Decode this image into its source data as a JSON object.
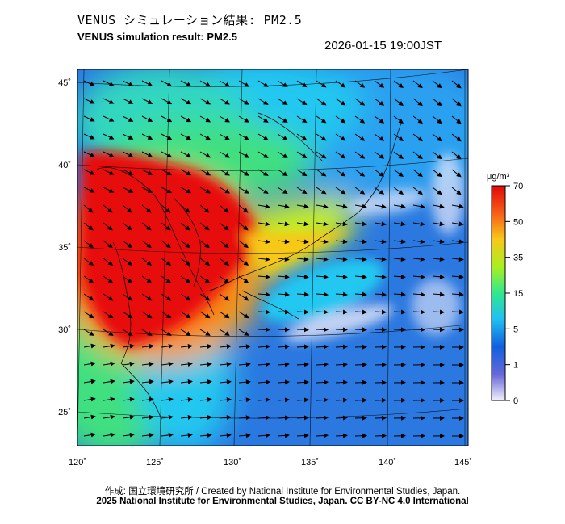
{
  "title_jp": "VENUS シミュレーション結果: PM2.5",
  "title_en": "VENUS simulation result: PM2.5",
  "timestamp": "2026-01-15 19:00JST",
  "colorbar": {
    "unit": "μg/m³",
    "ticks": [
      "70",
      "50",
      "35",
      "15",
      "5",
      "1",
      "0"
    ],
    "colors": [
      "#e8e8f8",
      "#5858d8",
      "#1870e8",
      "#20c8f0",
      "#30e890",
      "#c8f020",
      "#f8c818",
      "#f86018",
      "#e81010"
    ]
  },
  "axes": {
    "lon_labels": [
      "120˚",
      "125˚",
      "130˚",
      "135˚",
      "140˚",
      "145˚"
    ],
    "lat_labels": [
      "45˚",
      "40˚",
      "35˚",
      "30˚",
      "25˚"
    ]
  },
  "credit": {
    "line1": "作成: 国立環境研究所 / Created by National Institute for Environmental Studies, Japan.",
    "line2": "2025 National Institute for Environmental Studies, Japan. CC BY-NC 4.0 International"
  }
}
